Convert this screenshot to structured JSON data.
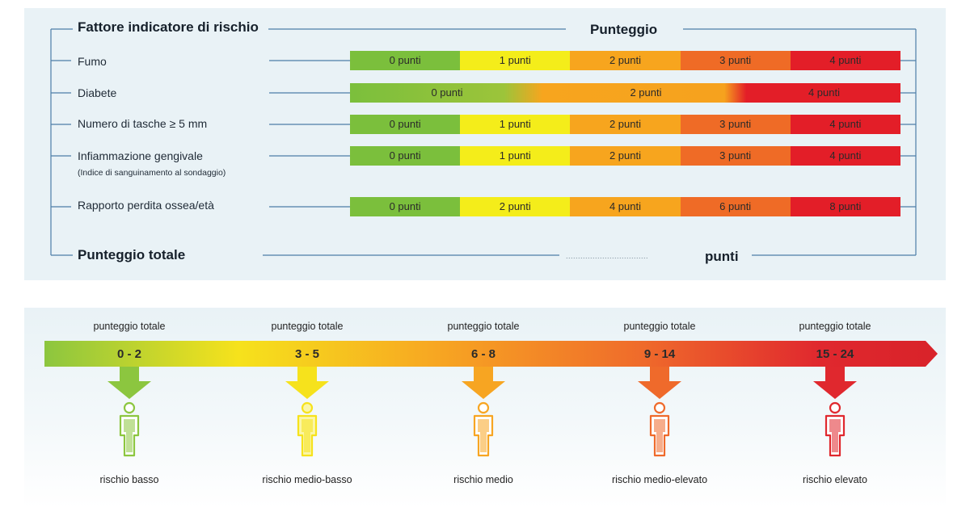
{
  "table": {
    "header_factor": "Fattore indicatore di rischio",
    "header_score": "Punteggio",
    "rows": [
      {
        "label": "Fumo",
        "sublabel": "",
        "cells": [
          {
            "text": "0 punti",
            "color": "#7bbf3c"
          },
          {
            "text": "1 punti",
            "color": "#f4ed1a"
          },
          {
            "text": "2 punti",
            "color": "#f7a51e"
          },
          {
            "text": "3 punti",
            "color": "#ef6b26"
          },
          {
            "text": "4 punti",
            "color": "#e31e28"
          }
        ]
      },
      {
        "label": "Diabete",
        "sublabel": "",
        "cells": [
          {
            "text": "0 punti",
            "color": "#7bbf3c"
          },
          {
            "text": "2 punti",
            "color": "#f7a51e"
          },
          {
            "text": "4 punti",
            "color": "#e31e28"
          }
        ]
      },
      {
        "label": "Numero di tasche ≥ 5 mm",
        "sublabel": "",
        "cells": [
          {
            "text": "0 punti",
            "color": "#7bbf3c"
          },
          {
            "text": "1 punti",
            "color": "#f4ed1a"
          },
          {
            "text": "2 punti",
            "color": "#f7a51e"
          },
          {
            "text": "3 punti",
            "color": "#ef6b26"
          },
          {
            "text": "4 punti",
            "color": "#e31e28"
          }
        ]
      },
      {
        "label": "Infiammazione gengivale",
        "sublabel": "(Indice di sanguinamento al sondaggio)",
        "cells": [
          {
            "text": "0 punti",
            "color": "#7bbf3c"
          },
          {
            "text": "1 punti",
            "color": "#f4ed1a"
          },
          {
            "text": "2 punti",
            "color": "#f7a51e"
          },
          {
            "text": "3 punti",
            "color": "#ef6b26"
          },
          {
            "text": "4 punti",
            "color": "#e31e28"
          }
        ]
      },
      {
        "label": "Rapporto perdita ossea/età",
        "sublabel": "",
        "cells": [
          {
            "text": "0 punti",
            "color": "#7bbf3c"
          },
          {
            "text": "2 punti",
            "color": "#f4ed1a"
          },
          {
            "text": "4 punti",
            "color": "#f7a51e"
          },
          {
            "text": "6 punti",
            "color": "#ef6b26"
          },
          {
            "text": "8 punti",
            "color": "#e31e28"
          }
        ]
      }
    ],
    "total_label": "Punteggio totale",
    "total_placeholder": "..................................",
    "total_unit": "punti"
  },
  "scale": {
    "levels": [
      {
        "caption": "punteggio totale",
        "range": "0 - 2",
        "risk": "rischio basso",
        "color": "#8cc63f"
      },
      {
        "caption": "punteggio totale",
        "range": "3 - 5",
        "risk": "rischio medio-basso",
        "color": "#f6e21c"
      },
      {
        "caption": "punteggio totale",
        "range": "6 - 8",
        "risk": "rischio medio",
        "color": "#f7a522"
      },
      {
        "caption": "punteggio totale",
        "range": "9 - 14",
        "risk": "rischio medio-elevato",
        "color": "#ef6a2b"
      },
      {
        "caption": "punteggio totale",
        "range": "15 - 24",
        "risk": "rischio elevato",
        "color": "#e0282e"
      }
    ]
  },
  "colors": {
    "panel_bg": "#e9f2f6",
    "line": "#4d7ea8",
    "green": "#7bbf3c",
    "yellow": "#f4ed1a",
    "orange": "#f7a51e",
    "dark_orange": "#ef6b26",
    "red": "#e31e28"
  }
}
